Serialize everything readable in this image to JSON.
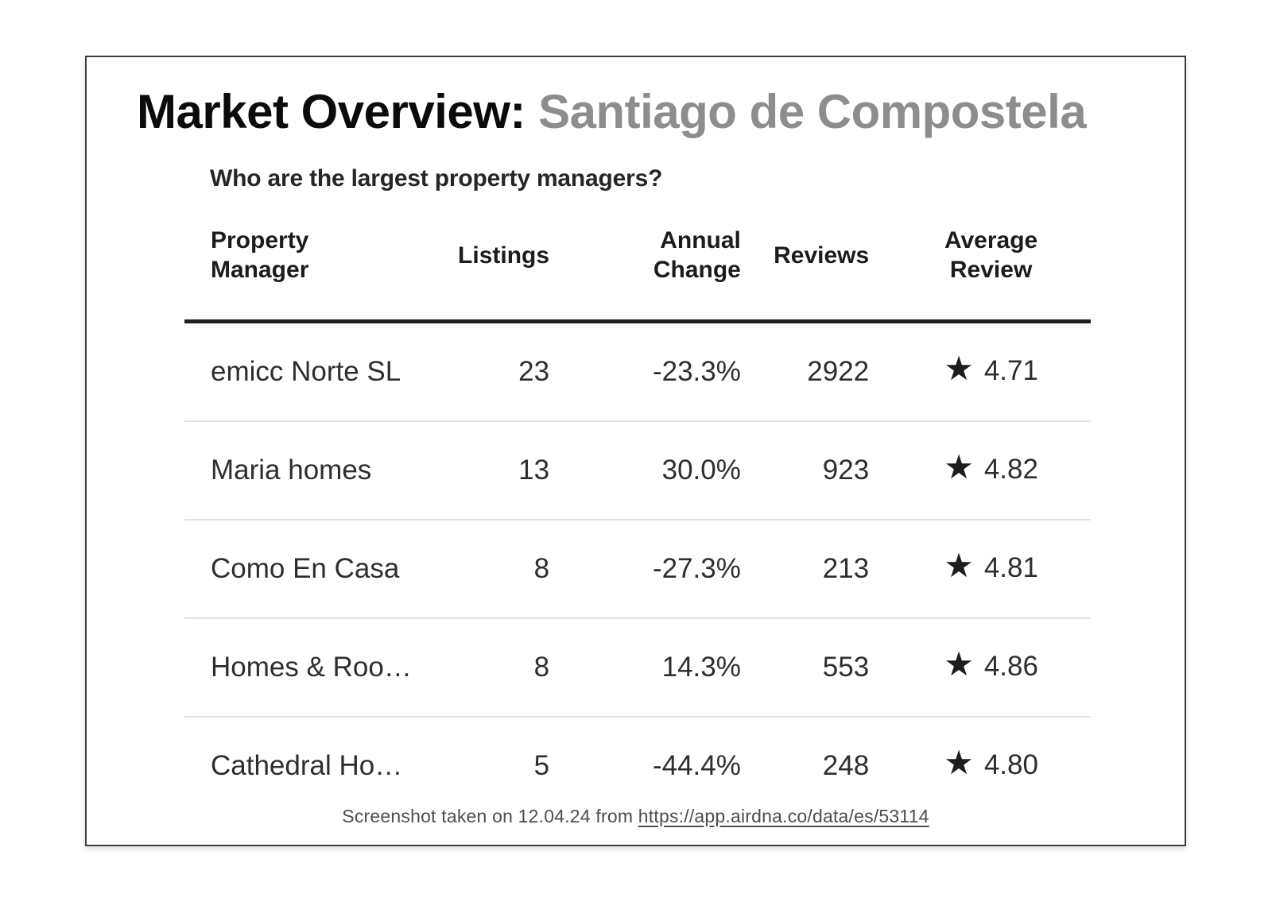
{
  "header": {
    "title_prefix": "Market Overview:",
    "market_name": "Santiago de Compostela",
    "question": "Who are the largest property managers?"
  },
  "table": {
    "columns": [
      {
        "label": "Property\nManager"
      },
      {
        "label": "Listings"
      },
      {
        "label": "Annual\nChange"
      },
      {
        "label": "Reviews"
      },
      {
        "label": "Average\nReview"
      }
    ],
    "star_icon": "★",
    "rows": [
      {
        "property_manager": "emicc Norte SL",
        "listings": "23",
        "annual_change": "-23.3%",
        "reviews": "2922",
        "average_review": "4.71"
      },
      {
        "property_manager": "Maria homes",
        "listings": "13",
        "annual_change": "30.0%",
        "reviews": "923",
        "average_review": "4.82"
      },
      {
        "property_manager": "Como En Casa",
        "listings": "8",
        "annual_change": "-27.3%",
        "reviews": "213",
        "average_review": "4.81"
      },
      {
        "property_manager": "Homes & Roo…",
        "listings": "8",
        "annual_change": "14.3%",
        "reviews": "553",
        "average_review": "4.86"
      },
      {
        "property_manager": "Cathedral Ho…",
        "listings": "5",
        "annual_change": "-44.4%",
        "reviews": "248",
        "average_review": "4.80"
      }
    ]
  },
  "chart_data": {
    "type": "table",
    "title": "Market Overview: Santiago de Compostela",
    "subtitle": "Who are the largest property managers?",
    "columns": [
      "Property Manager",
      "Listings",
      "Annual Change",
      "Reviews",
      "Average Review"
    ],
    "rows": [
      {
        "property_manager": "emicc Norte SL",
        "listings": 23,
        "annual_change_pct": -23.3,
        "reviews": 2922,
        "average_review": 4.71
      },
      {
        "property_manager": "Maria homes",
        "listings": 13,
        "annual_change_pct": 30.0,
        "reviews": 923,
        "average_review": 4.82
      },
      {
        "property_manager": "Como En Casa",
        "listings": 8,
        "annual_change_pct": -27.3,
        "reviews": 213,
        "average_review": 4.81
      },
      {
        "property_manager": "Homes & Roo…",
        "listings": 8,
        "annual_change_pct": 14.3,
        "reviews": 553,
        "average_review": 4.86
      },
      {
        "property_manager": "Cathedral Ho…",
        "listings": 5,
        "annual_change_pct": -44.4,
        "reviews": 248,
        "average_review": 4.8
      }
    ]
  },
  "footer": {
    "prefix": "Screenshot taken on 12.04.24 from",
    "url": "https://app.airdna.co/data/es/53114"
  },
  "colors": {
    "title_accent_gray": "#8d8d8d",
    "text_dark": "#1f1f1f",
    "cell_text": "#2e2e2e",
    "row_divider": "#e2e2e2",
    "card_border": "#3d3d3d",
    "footer_text": "#4d4d4d"
  }
}
